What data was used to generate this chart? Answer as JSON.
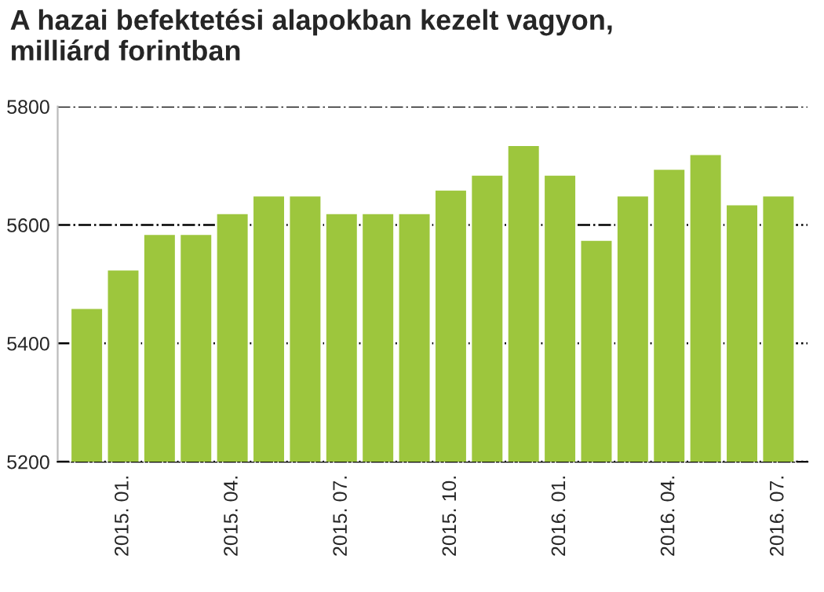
{
  "chart_data": {
    "type": "bar",
    "title": "A hazai befektetési alapokban kezelt vagyon,\nmilliárd forintban",
    "categories": [
      null,
      "2015. 01.",
      null,
      null,
      "2015. 04.",
      null,
      null,
      "2015. 07.",
      null,
      null,
      "2015. 10.",
      null,
      null,
      "2016. 01.",
      null,
      null,
      "2016. 04.",
      null,
      null,
      "2016. 07."
    ],
    "values": [
      5460,
      5525,
      5585,
      5585,
      5620,
      5650,
      5650,
      5620,
      5620,
      5620,
      5660,
      5685,
      5735,
      5685,
      5575,
      5650,
      5695,
      5720,
      5635,
      5650
    ],
    "color": "#9dc63d",
    "ylim": [
      5200,
      5800
    ],
    "yticks": [
      5200,
      5400,
      5600,
      5800
    ],
    "grid": "y"
  }
}
